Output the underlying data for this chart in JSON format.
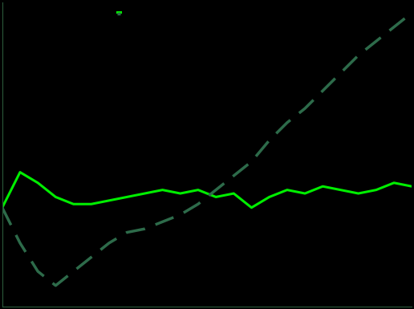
{
  "background_color": "#000000",
  "plot_bg_color": "#000000",
  "canada_color": "#00ee00",
  "us_color": "#2d6b4a",
  "canada_linewidth": 2.2,
  "us_linewidth": 2.5,
  "x": [
    0,
    1,
    2,
    3,
    4,
    5,
    6,
    7,
    8,
    9,
    10,
    11,
    12,
    13,
    14,
    15,
    16,
    17,
    18,
    19,
    20,
    21,
    22,
    23
  ],
  "canada_y": [
    100,
    110,
    107,
    103,
    101,
    101,
    102,
    103,
    104,
    105,
    104,
    105,
    103,
    104,
    100,
    103,
    105,
    104,
    106,
    105,
    104,
    105,
    107,
    106
  ],
  "us_y": [
    100,
    90,
    82,
    78,
    82,
    86,
    90,
    93,
    94,
    96,
    98,
    101,
    105,
    109,
    113,
    119,
    124,
    128,
    133,
    138,
    143,
    147,
    151,
    155
  ],
  "ylim": [
    72,
    158
  ],
  "xlim": [
    0,
    23
  ],
  "spine_color": "#2a5a3a",
  "legend_solid_color": "#00ee00",
  "legend_dashed_color": "#2d6b4a"
}
